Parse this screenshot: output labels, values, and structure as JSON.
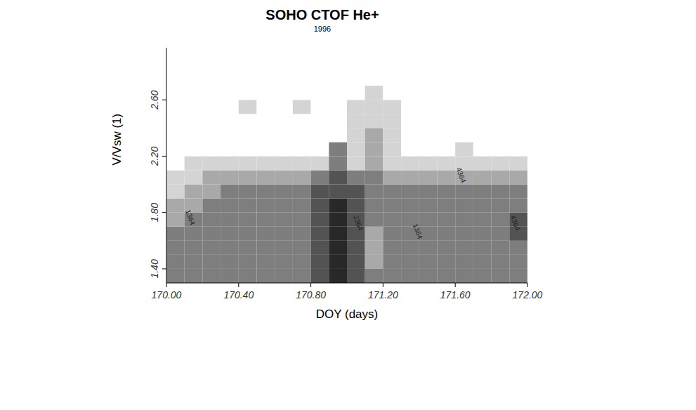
{
  "chart_data": {
    "type": "heatmap",
    "title": "SOHO CTOF He+",
    "subtitle": "1996",
    "x_label": "DOY (days)",
    "y_label": "V/Vsw (1)",
    "xlim": [
      170,
      172
    ],
    "ylim": [
      1.3,
      2.97
    ],
    "xticks": [
      {
        "value": 170,
        "label": "170.00"
      },
      {
        "value": 170.4,
        "label": "170.40"
      },
      {
        "value": 170.8,
        "label": "170.80"
      },
      {
        "value": 171.2,
        "label": "171.20"
      },
      {
        "value": 171.6,
        "label": "171.60"
      },
      {
        "value": 172,
        "label": "172.00"
      }
    ],
    "yticks": [
      {
        "value": 1.4,
        "label": "1.40"
      },
      {
        "value": 1.8,
        "label": "1.80"
      },
      {
        "value": 2.2,
        "label": "2.20"
      },
      {
        "value": 2.6,
        "label": "2.60"
      }
    ],
    "cell_range": [
      0,
      5
    ],
    "cells": {
      "x_edges": [
        170,
        170.1,
        170.2,
        170.3,
        170.4,
        170.5,
        170.6,
        170.7,
        170.8,
        170.9,
        171,
        171.1,
        171.2,
        171.3,
        171.4,
        171.5,
        171.6,
        171.7,
        171.8,
        171.9,
        172
      ],
      "y_edges": [
        1.3,
        1.4,
        1.5,
        1.6,
        1.7,
        1.8,
        1.9,
        2.0,
        2.1,
        2.2,
        2.3,
        2.4,
        2.5,
        2.6,
        2.7
      ],
      "values": [
        [
          3,
          3,
          3,
          3,
          3,
          3,
          3,
          3,
          4,
          5,
          4,
          3,
          3,
          3,
          3,
          3,
          3,
          3,
          3,
          3
        ],
        [
          3,
          3,
          3,
          3,
          3,
          3,
          3,
          3,
          4,
          5,
          4,
          2,
          3,
          3,
          3,
          3,
          3,
          3,
          3,
          3
        ],
        [
          3,
          3,
          3,
          3,
          3,
          3,
          3,
          3,
          4,
          5,
          4,
          2,
          3,
          3,
          3,
          3,
          3,
          3,
          3,
          3
        ],
        [
          3,
          3,
          3,
          3,
          3,
          3,
          3,
          3,
          4,
          5,
          4,
          2,
          3,
          3,
          3,
          3,
          3,
          3,
          3,
          4
        ],
        [
          2,
          3,
          3,
          3,
          3,
          3,
          3,
          3,
          4,
          5,
          4,
          3,
          3,
          3,
          3,
          3,
          3,
          3,
          3,
          4
        ],
        [
          2,
          2,
          3,
          3,
          3,
          3,
          3,
          3,
          4,
          5,
          4,
          3,
          3,
          3,
          3,
          3,
          3,
          3,
          3,
          3
        ],
        [
          1,
          2,
          2,
          3,
          3,
          3,
          3,
          3,
          4,
          4,
          4,
          3,
          3,
          3,
          3,
          3,
          3,
          3,
          3,
          3
        ],
        [
          1,
          1,
          2,
          2,
          2,
          2,
          2,
          2,
          3,
          4,
          3,
          3,
          2,
          2,
          2,
          2,
          2,
          2,
          2,
          2
        ],
        [
          0,
          1,
          1,
          1,
          1,
          1,
          1,
          1,
          1,
          3,
          1,
          2,
          1,
          1,
          1,
          1,
          1,
          1,
          1,
          1
        ],
        [
          0,
          0,
          0,
          0,
          0,
          0,
          0,
          0,
          0,
          3,
          1,
          2,
          1,
          0,
          0,
          0,
          1,
          0,
          0,
          0
        ],
        [
          0,
          0,
          0,
          0,
          0,
          0,
          0,
          0,
          0,
          0,
          1,
          2,
          1,
          0,
          0,
          0,
          0,
          0,
          0,
          0
        ],
        [
          0,
          0,
          0,
          0,
          0,
          0,
          0,
          0,
          0,
          0,
          1,
          1,
          1,
          0,
          0,
          0,
          0,
          0,
          0,
          0
        ],
        [
          0,
          0,
          0,
          0,
          1,
          0,
          0,
          1,
          0,
          0,
          1,
          1,
          1,
          0,
          0,
          0,
          0,
          0,
          0,
          0
        ],
        [
          0,
          0,
          0,
          0,
          0,
          0,
          0,
          0,
          0,
          0,
          0,
          1,
          0,
          0,
          0,
          0,
          0,
          0,
          0,
          0
        ]
      ]
    },
    "annotations": [
      {
        "x": 170.12,
        "y": 1.76,
        "text": "1364"
      },
      {
        "x": 171.05,
        "y": 1.72,
        "text": "2364"
      },
      {
        "x": 171.38,
        "y": 1.66,
        "text": "1364"
      },
      {
        "x": 171.62,
        "y": 2.06,
        "text": "4364"
      },
      {
        "x": 171.92,
        "y": 1.72,
        "text": "4364"
      }
    ]
  }
}
